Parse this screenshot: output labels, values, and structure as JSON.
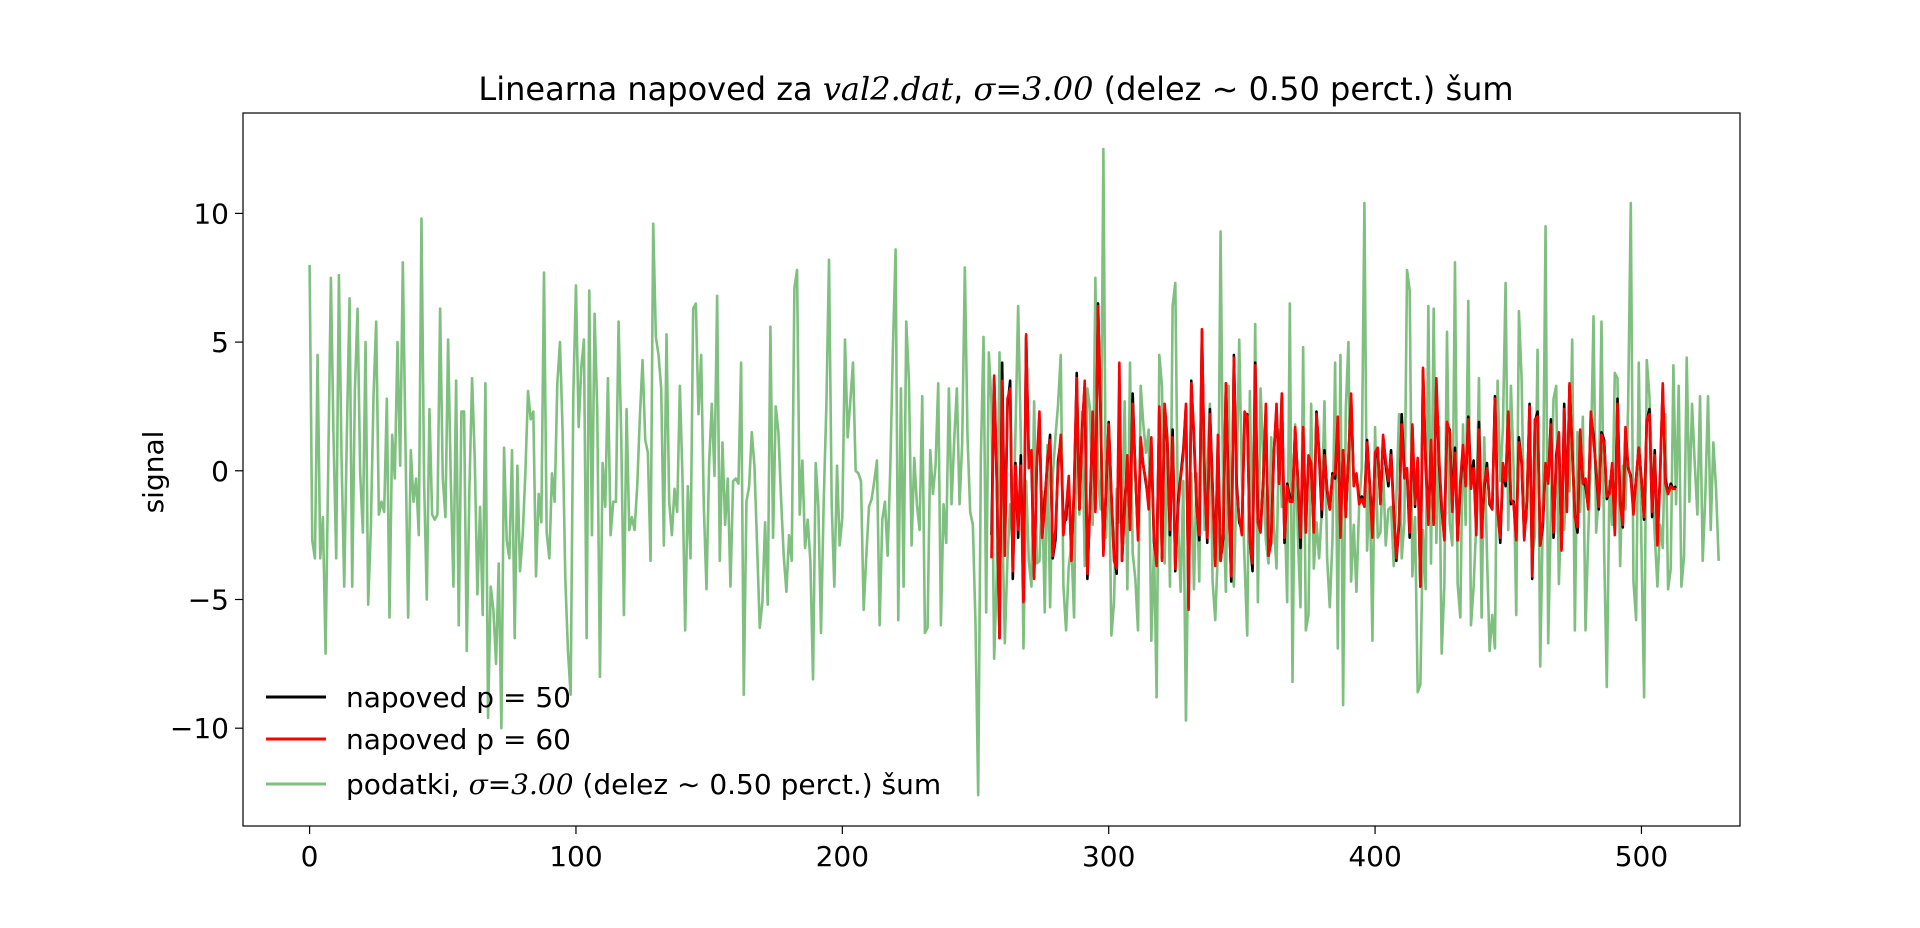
{
  "chart_data": {
    "type": "line",
    "title": {
      "prefix": "Linearna napoved za ",
      "filename": "val2.dat",
      "mid": ", ",
      "sigma_expr": "σ=3.00",
      "suffix": " (delez ∼ 0.50 perct.)  šum"
    },
    "xlabel": "",
    "ylabel": "signal",
    "xlim": [
      -25,
      537
    ],
    "ylim": [
      -13.8,
      13.9
    ],
    "xticks": [
      0,
      100,
      200,
      300,
      400,
      500
    ],
    "yticks": [
      -10,
      -5,
      0,
      5,
      10
    ],
    "xtick_labels": [
      "0",
      "100",
      "200",
      "300",
      "400",
      "500"
    ],
    "ytick_labels": [
      "−10",
      "−5",
      "0",
      "5",
      "10"
    ],
    "grid": false,
    "legend_position": "lower left",
    "legend": [
      {
        "label": "napoved p = 50",
        "color": "#000000"
      },
      {
        "label": "napoved p = 60",
        "color": "#ff0000"
      },
      {
        "label_prefix": "podatki, ",
        "label_math": "σ=3.00",
        "label_suffix": "  (delez ∼ 0.50 perct.) šum",
        "color": "#7fbf7f"
      }
    ],
    "series": [
      {
        "name": "napoved p = 50",
        "color": "#000000",
        "x_start": 256,
        "values": [
          -2.5,
          3.6,
          -0.5,
          -6.5,
          4.2,
          -3,
          2.5,
          3.5,
          -4.2,
          0.3,
          -2.6,
          0.6,
          -5,
          5.2,
          0.5,
          0.4,
          -4.1,
          0.2,
          2,
          -2.5,
          -1.1,
          0.3,
          1.4,
          -3.4,
          -2.7,
          0.4,
          1.2,
          -2,
          -1.9,
          -0.4,
          -3.3,
          -0.8,
          3.8,
          -1.5,
          1.6,
          3.3,
          -4.2,
          -1.2,
          2,
          -1.5,
          6.5,
          1.9,
          -3.1,
          -0.8,
          1.9,
          -0.9,
          -3.3,
          -4,
          3.1,
          -3.5,
          -1.2,
          0.3,
          -2.1,
          3,
          -0.1,
          -2.5,
          1,
          0.2,
          -0.5,
          -1.2,
          1,
          -2.8,
          -3.5,
          2.4,
          -3.4,
          2.4,
          1.1,
          -2.5,
          1.6,
          -3.9,
          -1.2,
          -0.2,
          0.8,
          2.5,
          -5.3,
          3.5,
          1.2,
          -1.3,
          -2.7,
          5.4,
          -0.2,
          -2.8,
          2.4,
          -0.6,
          -3.5,
          1.2,
          -3.5,
          -2.6,
          3.4,
          -0.9,
          -4.3,
          4.5,
          -0.4,
          -2,
          -2.3,
          1.9,
          2.2,
          -2.7,
          -3.9,
          4.2,
          -1.9,
          -2.3,
          -0.4,
          2.3,
          -3.3,
          -2.6,
          0.7,
          2.4,
          -0.5,
          3,
          -2.8,
          -0.5,
          -1,
          -1.1,
          1.6,
          -0.3,
          -3,
          1.5,
          -2.2,
          0.5,
          0.2,
          -2.3,
          2.3,
          0.6,
          -1.8,
          0.8,
          -0.8,
          -1.5,
          -0.1,
          -0.3,
          1.9,
          -2.3,
          0.8,
          -1.6,
          0.4,
          2.8,
          -0.4,
          -0.2,
          -1.1,
          -1,
          -1.2,
          1.2,
          -0.5,
          -2.3,
          0.5,
          0.8,
          -1.2,
          1.2,
          0.2,
          -0.6,
          0.8,
          -1.5,
          -3.5,
          -2.1,
          2.2,
          -0.1,
          -0.1,
          -2.6,
          1.7,
          -1.4,
          0.4,
          -4.5,
          3.9,
          0.3,
          -1.9,
          1,
          -2,
          3.4,
          0.3,
          -1.5,
          -2.6,
          1.8,
          1.6,
          -1.4,
          0.9,
          -2.7,
          -0.6,
          0.8,
          -0.5,
          2.1,
          -0.4,
          0.4,
          -2.3,
          1.9,
          -2.3,
          -0.7,
          0.3,
          -1.3,
          -1.5,
          2.9,
          -1.3,
          -2.8,
          0.1,
          -0.6,
          2.2,
          -1.3,
          -1.2,
          -2.6,
          1.3,
          0.3,
          -2.6,
          -1.2,
          2.6,
          -4.2,
          1.9,
          2.3,
          -2.9,
          -2.1,
          0.2,
          -0.4,
          2,
          -2.6,
          0.6,
          1.4,
          -3,
          2.6,
          -1.4,
          3.3,
          0.9,
          -1.7,
          -2.4,
          1.4,
          -0.4,
          -0.6,
          -1.4,
          2.1,
          1.4,
          -0.1,
          -1.5,
          1.5,
          1.2,
          -1.1,
          -0.8,
          0.2,
          -2.3,
          2.8,
          -1.1,
          -2.2,
          1.5,
          0.1,
          -0.2,
          -1.5,
          -0.3,
          0.9,
          -0.3,
          -1.9,
          1.9,
          2.4,
          -1.8,
          0.8,
          -2.7,
          -0.1,
          3.2,
          -0.3,
          -0.9,
          -0.5,
          -0.7,
          -0.6
        ]
      },
      {
        "name": "napoved p = 60",
        "color": "#ff0000",
        "x_start": 256,
        "values": [
          -3.4,
          3.7,
          -0.4,
          -6.5,
          3.5,
          -3.3,
          2.8,
          3.2,
          -3.9,
          0.2,
          -2.3,
          0.2,
          -5.1,
          5.3,
          0.1,
          0.8,
          -4.2,
          0.3,
          2.3,
          -2.6,
          -1.5,
          0.5,
          1.2,
          -3.3,
          -2.3,
          0.1,
          1.4,
          -2.5,
          -1.5,
          -0.2,
          -3.5,
          -0.6,
          3.6,
          -1.5,
          1.4,
          3.5,
          -4,
          -1.4,
          2.3,
          -1.6,
          6.4,
          2.2,
          -3.3,
          -0.6,
          1.8,
          -1,
          -3.5,
          -3.8,
          4.2,
          -3.5,
          -1.5,
          0.6,
          -2.3,
          2.6,
          0,
          -2.7,
          1.3,
          0.2,
          -0.4,
          -1.5,
          1.3,
          -2.6,
          -3.7,
          2.5,
          -3.5,
          2.6,
          1.3,
          -2.3,
          1.3,
          -3.8,
          -1.5,
          -0.3,
          0.6,
          2.6,
          -5.4,
          3.4,
          1.5,
          -1.4,
          -2.5,
          5.5,
          -0.5,
          -2.6,
          2.2,
          -0.8,
          -3.7,
          1.4,
          -3.5,
          -2.4,
          3.4,
          -1.2,
          -4.1,
          4.4,
          -0.7,
          -1.8,
          -2.5,
          2.3,
          2.1,
          -2.8,
          -3.6,
          4.1,
          -2,
          -2.4,
          -0.3,
          2.6,
          -3.3,
          -2.8,
          0.6,
          2.6,
          -0.5,
          3,
          -2.6,
          -0.6,
          -1.2,
          -1.2,
          1.7,
          -0.3,
          -2.6,
          1.7,
          -2.4,
          0.6,
          0.3,
          -2.4,
          2.2,
          0.8,
          -1.5,
          0.6,
          -0.7,
          -1.5,
          -0.2,
          -0.1,
          2.1,
          -2.6,
          0.8,
          -1.8,
          0.5,
          3,
          -0.6,
          -0.1,
          -1.3,
          -1.1,
          -1.4,
          1.1,
          -0.6,
          -2.6,
          0.7,
          0.9,
          -1.3,
          1.4,
          0.4,
          -0.4,
          0.6,
          -1.7,
          -3.4,
          -1.9,
          1.8,
          -0.3,
          0.1,
          -2.4,
          1.8,
          -1.3,
          0.5,
          -4.5,
          4,
          0.1,
          -2.1,
          1.2,
          -2.1,
          3.6,
          0.5,
          -1.3,
          -2.7,
          1.9,
          1.5,
          -1.6,
          0.7,
          -2.7,
          -0.4,
          1,
          -0.6,
          2,
          -0.7,
          0.1,
          -2.5,
          1.6,
          -2.6,
          -0.5,
          0.1,
          -1.2,
          -1.5,
          2.8,
          -1.6,
          -2.6,
          0.3,
          -0.4,
          2.3,
          -1.1,
          -1.3,
          -2.7,
          1.1,
          0.4,
          -2.7,
          -1.1,
          2.5,
          -4.1,
          2,
          2.1,
          -2.9,
          -1.9,
          0.3,
          -0.5,
          1.8,
          -2.4,
          0.4,
          1.5,
          -3.1,
          2.4,
          -1.6,
          3.4,
          0.8,
          -1.8,
          -2.2,
          1.6,
          -0.5,
          -0.3,
          -1.5,
          2.3,
          1.2,
          0.1,
          -1.4,
          1.4,
          1.1,
          -1,
          -0.9,
          0.3,
          -2.5,
          2.6,
          -1.3,
          -2.1,
          1.7,
          0.2,
          -0.3,
          -1.7,
          -0.3,
          0.9,
          -0.4,
          -1.8,
          2,
          2.2,
          -1.6,
          0.6,
          -2.9,
          -0.3,
          3.4,
          -0.5,
          -0.9,
          -0.6,
          -0.7,
          -0.7
        ]
      },
      {
        "name": "podatki, σ=3.00  (delez ∼ 0.50 perct.) šum",
        "color": "#7fbf7f",
        "x_start": 0,
        "values": [
          8,
          -2.7,
          -3.4,
          4.5,
          -3.4,
          -1.8,
          -7.1,
          0.2,
          7.5,
          1.2,
          -3.4,
          7.6,
          0.5,
          -4.5,
          1.5,
          6.7,
          -4.5,
          3.1,
          6.3,
          -0.1,
          -2.4,
          5,
          -5.2,
          -2.2,
          2.9,
          5.8,
          -1.7,
          -1.2,
          -1.6,
          2.8,
          -5.7,
          1.4,
          -0.3,
          5,
          0.2,
          8.1,
          1,
          -5.7,
          0.8,
          -1.2,
          -0.3,
          -2.5,
          9.8,
          -0.5,
          -5,
          2.4,
          -1.7,
          -1.9,
          -1.7,
          6.3,
          -0.3,
          -1.8,
          5.1,
          -0.3,
          -4.5,
          3.5,
          -6,
          2.3,
          2.3,
          -7,
          -0.7,
          3.6,
          0.5,
          -4.8,
          -1.4,
          -5.6,
          3.4,
          -9.6,
          -4.5,
          -5.4,
          -7.5,
          -3.6,
          -10,
          0.9,
          -2.7,
          -3.4,
          0.8,
          -6.5,
          0.2,
          -3.9,
          -2.5,
          -0.1,
          3.1,
          2,
          2.3,
          -4.1,
          -0.9,
          -2,
          7.7,
          -2.4,
          -3.4,
          -0.1,
          -1.2,
          3.4,
          5,
          1.5,
          -4.2,
          -7,
          -8.7,
          2.9,
          7.2,
          1.7,
          4,
          5.1,
          -6.5,
          7,
          -2.5,
          6.1,
          2.3,
          -8,
          0.3,
          -1.4,
          3.6,
          -2.5,
          -1.2,
          -1.2,
          5.8,
          1.3,
          -5.6,
          2.4,
          -2.3,
          -1.8,
          -2.3,
          -0.6,
          2.1,
          4.3,
          1.2,
          0.7,
          -3.5,
          9.6,
          5.2,
          4.5,
          3.2,
          -2.9,
          5.3,
          -1.2,
          -2.5,
          -0.7,
          -1.6,
          3.3,
          -0.3,
          -6.2,
          -0.6,
          -3.4,
          6.3,
          6.5,
          2.2,
          4.5,
          -1.4,
          -4.6,
          0.3,
          2.6,
          -0.2,
          6.8,
          -3.5,
          1.1,
          -2.1,
          -0.3,
          -4.5,
          -0.4,
          -0.3,
          -0.5,
          4.2,
          -8.7,
          -1.2,
          -0.6,
          1.5,
          0.2,
          -2.9,
          -6.1,
          -5.1,
          -2,
          -5.2,
          5.6,
          -2.6,
          2.5,
          1.5,
          -1.1,
          -3.3,
          -4.7,
          -2.5,
          -3.5,
          7.1,
          7.8,
          -1.7,
          0.4,
          -3,
          -1.9,
          -3.5,
          -8.1,
          0.3,
          -1.4,
          -6.3,
          -1.2,
          2.5,
          8.2,
          -1.3,
          -4.5,
          0.2,
          -2.9,
          -1.8,
          5.1,
          1.3,
          2.7,
          4.2,
          0,
          -0.1,
          -0.4,
          -5.4,
          -3.3,
          -1.4,
          -1.1,
          -0.4,
          0.4,
          -6,
          -1.9,
          -1.2,
          -3.3,
          0.1,
          4.8,
          8.6,
          -5.8,
          3.2,
          -4.5,
          5.8,
          3.5,
          -2.9,
          0.5,
          -1.3,
          -2.3,
          2.9,
          -6.3,
          -6.1,
          0.8,
          -0.9,
          0.2,
          3.4,
          -6,
          -1.3,
          -2.8,
          3.2,
          -1.3,
          1.2,
          3.2,
          -1.3,
          1.1,
          7.9,
          1.3,
          -1.6,
          -2.1,
          -6,
          -12.6,
          0.5,
          5.2,
          -5.5,
          4.6,
          2.6,
          -7.3,
          -4,
          4.6,
          -1.7,
          -6.7,
          -3.4,
          -1.3,
          -3,
          1.5,
          6.4,
          1.3,
          -6.9,
          -0.4,
          -3.5,
          -4.5,
          2.7,
          -3.6,
          -3.5,
          -0.8,
          -5.5,
          1,
          -5.3,
          -0.2,
          1.3,
          2.6,
          4.5,
          -4.5,
          -6.2,
          -3.7,
          -2.9,
          -5.7,
          2.4,
          -1.7,
          2.3,
          -3.7,
          3.2,
          2.4,
          -2.1,
          7.5,
          -0.3,
          -1.5,
          12.5,
          -2.6,
          1.1,
          -6.4,
          -5.1,
          -0.7,
          -2,
          -1.7,
          2.7,
          -4.6,
          4.2,
          -3.2,
          -4.2,
          -6.2,
          3.3,
          1.8,
          0.7,
          1.6,
          -6.6,
          -2.9,
          -8.8,
          4.5,
          3.3,
          -3.6,
          1.2,
          -4.5,
          6.4,
          7.3,
          -1.9,
          -4.7,
          -0.4,
          -9.7,
          -2,
          -0.1,
          -4.6,
          -0.1,
          -4.3,
          4.7,
          -2.3,
          0.3,
          2.6,
          -4.3,
          -5.8,
          -3.1,
          9.3,
          -1.4,
          -4.7,
          3.3,
          -3.5,
          -4.5,
          -0.5,
          5.1,
          -0.3,
          -3.5,
          -6.4,
          3.1,
          -3.1,
          5.7,
          -5.1,
          3.2,
          0.5,
          -2.7,
          -3.6,
          1.3,
          -2.1,
          -3.8,
          1.6,
          -1.4,
          -1.2,
          -5.1,
          6.5,
          -8.2,
          1.8,
          -2.5,
          -5.3,
          4.8,
          -6.2,
          -5.6,
          2.6,
          -3.8,
          -2,
          -3.4,
          -1.5,
          2.7,
          -3.4,
          -5.3,
          -2.7,
          4.2,
          -6.9,
          4.5,
          -9.1,
          2.4,
          5,
          -4.3,
          -2.1,
          -4.7,
          -1.4,
          0.1,
          10.4,
          -3.1,
          -0.4,
          -6.6,
          1.7,
          -2.6,
          -2.4,
          0.1,
          -2.9,
          -1.5,
          -1.4,
          -3.7,
          -1,
          2.2,
          -3.4,
          -2,
          7.8,
          7,
          -4.1,
          -1.8,
          -8.6,
          -8.3,
          -2.3,
          -4.6,
          6.4,
          -3.6,
          6.3,
          -2.8,
          1.7,
          -7.1,
          -4.5,
          5.4,
          -2,
          -2.9,
          8.1,
          -4.4,
          -5.7,
          1.8,
          -2.1,
          6.6,
          -6,
          -4.5,
          -2,
          3.6,
          -5.7,
          1.3,
          -3.2,
          -7,
          -5.6,
          -6.9,
          3.5,
          -0.4,
          1.7,
          7.3,
          -2.3,
          3.3,
          0.1,
          -5.6,
          6.2,
          3.6,
          -2.3,
          -1.8,
          1.6,
          -3.5,
          -2.5,
          4.7,
          -7.6,
          -1.7,
          9.5,
          -6.7,
          -1.6,
          2.8,
          3.3,
          -4.4,
          -1.3,
          -2.3,
          0.3,
          -0.8,
          5.1,
          -6.2,
          1.5,
          -1.6,
          2.1,
          -6.2,
          -2.6,
          0.4,
          6,
          -2.4,
          -0.9,
          5.8,
          -3.1,
          -8.4,
          -0.4,
          -2.1,
          3.8,
          3.6,
          -3.7,
          0.2,
          -1.5,
          2.5,
          10.4,
          -4.3,
          -5.8,
          4.2,
          -2.9,
          -8.8,
          4.3,
          2.9,
          -0.3,
          -2.5,
          -4.5,
          -2.1,
          -3,
          2.2,
          -4.6,
          -3.8,
          4.1,
          -1.3,
          3.3,
          -4.5,
          -3.3,
          4.4,
          -1.2,
          2.6,
          0.3,
          -1.7,
          2.9,
          -3.5,
          -0.9,
          2.9,
          -2.3,
          1.1,
          -0.7,
          -3.5
        ]
      }
    ]
  }
}
